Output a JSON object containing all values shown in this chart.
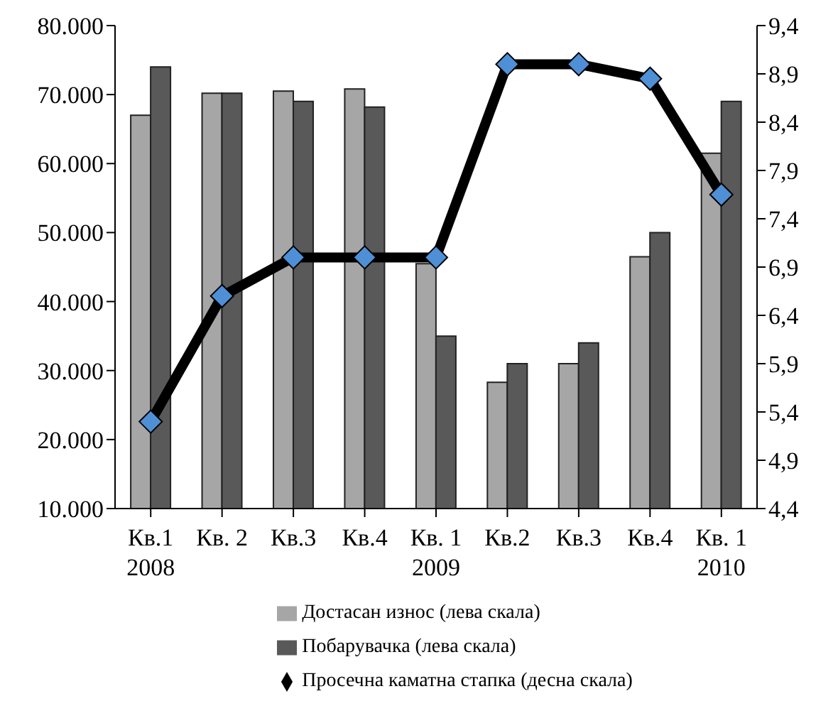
{
  "chart_data": {
    "type": "bar",
    "categories": [
      "Кв.1\n2008",
      "Кв. 2",
      "Кв.3",
      "Кв.4",
      "Кв. 1\n2009",
      "Кв.2",
      "Кв.3",
      "Кв.4",
      "Кв. 1\n2010"
    ],
    "series": [
      {
        "name": "Достасан износ (лева скала)",
        "color": "#a6a6a6",
        "values": [
          67000,
          70200,
          70500,
          70800,
          45500,
          28300,
          31000,
          46500,
          61500
        ]
      },
      {
        "name": "Побарувачка (лева скала)",
        "color": "#595959",
        "values": [
          74000,
          70200,
          69000,
          68200,
          35000,
          31000,
          34000,
          50000,
          69000
        ]
      },
      {
        "name": "Просечна каматна стапка (десна скала)",
        "type": "line",
        "axis": "y2",
        "color": "#000000",
        "marker": "diamond",
        "values": [
          5.3,
          6.6,
          7.0,
          7.0,
          7.0,
          9.0,
          9.0,
          8.85,
          7.65
        ]
      }
    ],
    "ylim": [
      10000,
      80000
    ],
    "yticks": [
      {
        "value": 10000,
        "label": "10.000"
      },
      {
        "value": 20000,
        "label": "20.000"
      },
      {
        "value": 30000,
        "label": "30.000"
      },
      {
        "value": 40000,
        "label": "40.000"
      },
      {
        "value": 50000,
        "label": "50.000"
      },
      {
        "value": 60000,
        "label": "60.000"
      },
      {
        "value": 70000,
        "label": "70.000"
      },
      {
        "value": 80000,
        "label": "80.000"
      }
    ],
    "y2lim": [
      4.4,
      9.4
    ],
    "y2ticks": [
      {
        "value": 4.4,
        "label": "4,4"
      },
      {
        "value": 4.9,
        "label": "4,9"
      },
      {
        "value": 5.4,
        "label": "5,4"
      },
      {
        "value": 5.9,
        "label": "5,9"
      },
      {
        "value": 6.4,
        "label": "6,4"
      },
      {
        "value": 6.9,
        "label": "6,9"
      },
      {
        "value": 7.4,
        "label": "7,4"
      },
      {
        "value": 7.9,
        "label": "7,9"
      },
      {
        "value": 8.4,
        "label": "8,4"
      },
      {
        "value": 8.9,
        "label": "8,9"
      },
      {
        "value": 9.4,
        "label": "9,4"
      }
    ],
    "grid": false,
    "legend": "bottom"
  }
}
